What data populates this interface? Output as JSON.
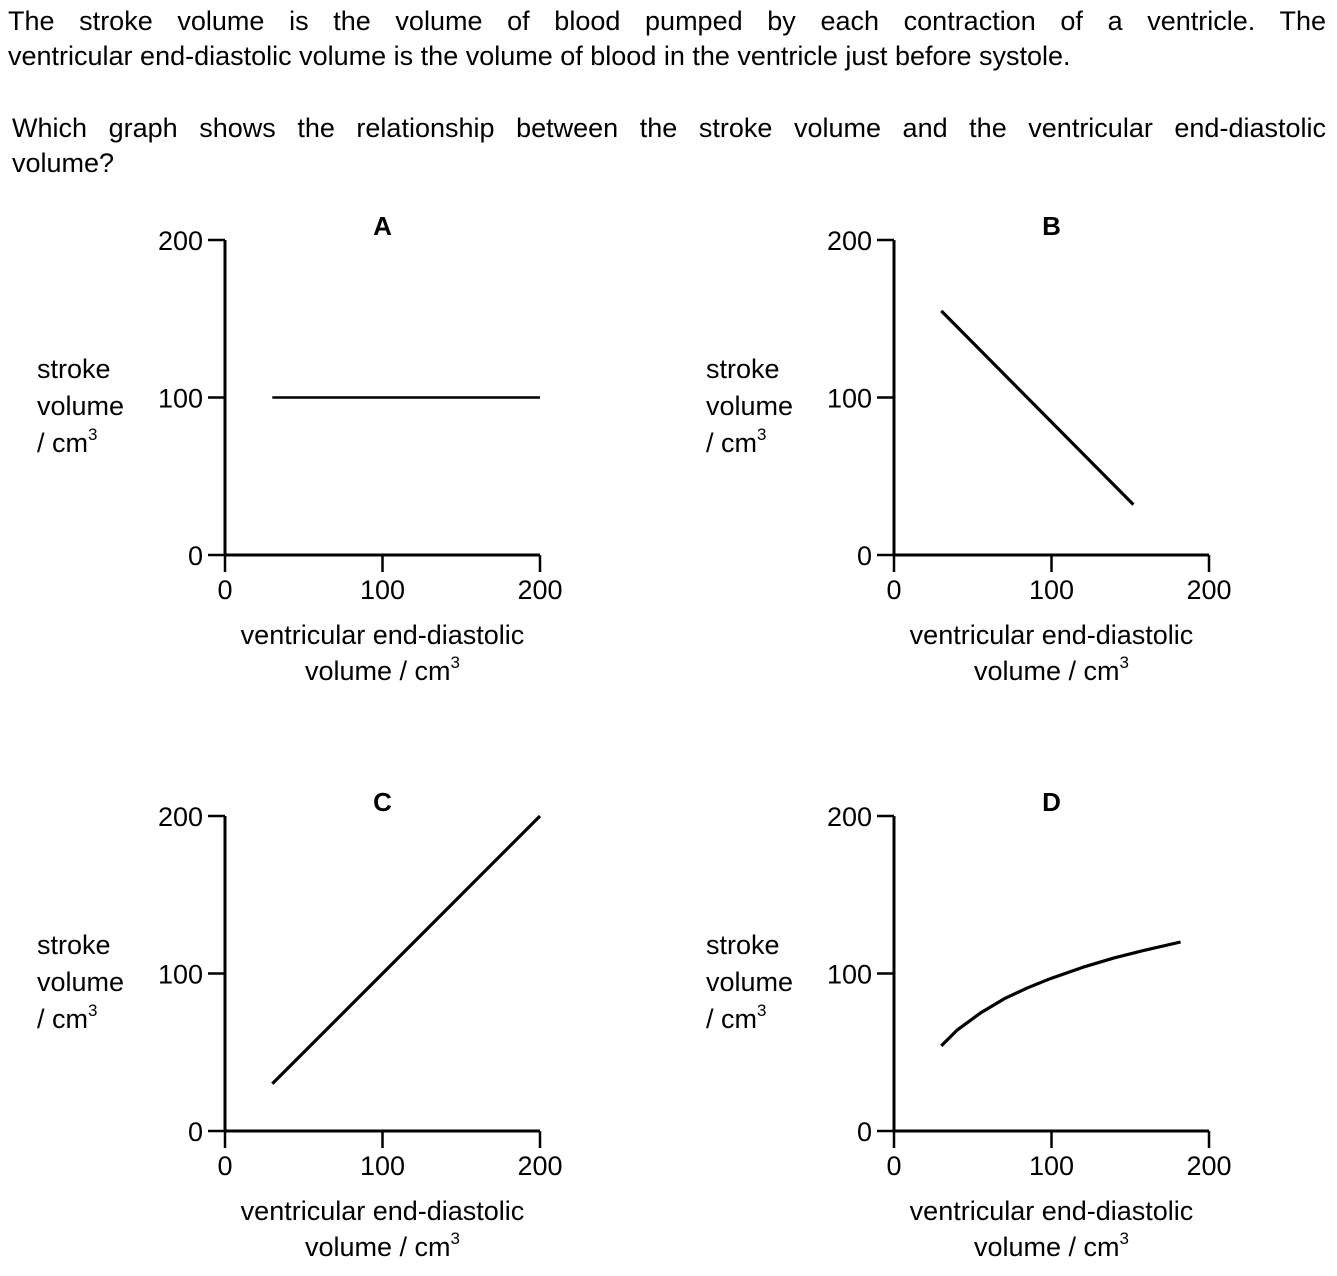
{
  "intro": {
    "line1": "The stroke volume is the volume of blood pumped by each contraction of a ventricle. The",
    "line2": "ventricular end-diastolic volume is the volume of blood in the ventricle just before systole."
  },
  "question": {
    "line1": "Which graph shows the relationship between the stroke volume and the ventricular end-diastolic",
    "line2": "volume?"
  },
  "axis_text": {
    "y_line1": "stroke",
    "y_line2": "volume",
    "y_line3": "/ cm",
    "x_line1": "ventricular end-diastolic",
    "x_line2": "volume / cm",
    "unit_sup": "3"
  },
  "chart_data": [
    {
      "type": "line",
      "panel": "A",
      "xlabel": "ventricular end-diastolic volume / cm3",
      "ylabel": "stroke volume / cm3",
      "xlim": [
        0,
        200
      ],
      "ylim": [
        0,
        200
      ],
      "x_ticks": [
        0,
        100,
        200
      ],
      "y_ticks": [
        0,
        100,
        200
      ],
      "grid": false,
      "series": [
        {
          "points": [
            [
              30,
              100
            ],
            [
              200,
              100
            ]
          ]
        }
      ]
    },
    {
      "type": "line",
      "panel": "B",
      "xlabel": "ventricular end-diastolic volume / cm3",
      "ylabel": "stroke volume / cm3",
      "xlim": [
        0,
        200
      ],
      "ylim": [
        0,
        200
      ],
      "x_ticks": [
        0,
        100,
        200
      ],
      "y_ticks": [
        0,
        100,
        200
      ],
      "grid": false,
      "series": [
        {
          "points": [
            [
              30,
              155
            ],
            [
              152,
              32
            ]
          ]
        }
      ]
    },
    {
      "type": "line",
      "panel": "C",
      "xlabel": "ventricular end-diastolic volume / cm3",
      "ylabel": "stroke volume / cm3",
      "xlim": [
        0,
        200
      ],
      "ylim": [
        0,
        200
      ],
      "x_ticks": [
        0,
        100,
        200
      ],
      "y_ticks": [
        0,
        100,
        200
      ],
      "grid": false,
      "series": [
        {
          "points": [
            [
              30,
              30
            ],
            [
              200,
              200
            ]
          ]
        }
      ]
    },
    {
      "type": "line",
      "panel": "D",
      "xlabel": "ventricular end-diastolic volume / cm3",
      "ylabel": "stroke volume / cm3",
      "xlim": [
        0,
        200
      ],
      "ylim": [
        0,
        200
      ],
      "x_ticks": [
        0,
        100,
        200
      ],
      "y_ticks": [
        0,
        100,
        200
      ],
      "grid": false,
      "series": [
        {
          "points": [
            [
              30,
              54
            ],
            [
              40,
              64
            ],
            [
              55,
              75
            ],
            [
              70,
              84
            ],
            [
              85,
              91
            ],
            [
              100,
              97
            ],
            [
              120,
              104
            ],
            [
              140,
              110
            ],
            [
              160,
              115
            ],
            [
              182,
              120
            ]
          ]
        }
      ]
    }
  ]
}
